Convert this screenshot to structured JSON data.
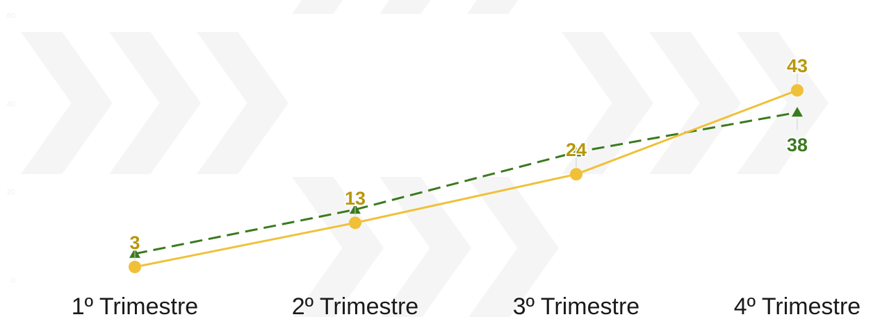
{
  "chart_data": {
    "type": "line",
    "categories": [
      "1º Trimestre",
      "2º Trimestre",
      "3º Trimestre",
      "4º Trimestre"
    ],
    "ylim": [
      0,
      60
    ],
    "yticks": [
      "0",
      "20",
      "40",
      "60"
    ],
    "grid": false,
    "legend": "none",
    "series": [
      {
        "values": [
          3,
          13,
          24,
          43
        ],
        "color": "#f0c038",
        "label_color": "#b8960c",
        "style": "solid",
        "marker": "circle",
        "labels": [
          "3",
          "13",
          "24",
          "43"
        ]
      },
      {
        "values": [
          6,
          16,
          29,
          38
        ],
        "color": "#3a7a1e",
        "label_color": "#3a7a1e",
        "style": "dashed",
        "marker": "triangle",
        "labels": [
          "",
          "",
          "",
          "38"
        ]
      }
    ]
  }
}
